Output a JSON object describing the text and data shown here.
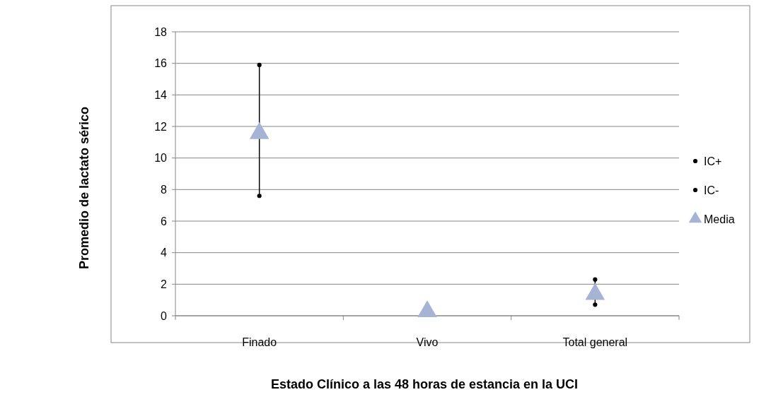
{
  "chart_data": {
    "type": "scatter",
    "xlabel": "Estado Clínico a las 48 horas de estancia en la UCI",
    "ylabel": "Promedio de lactato sérico",
    "categories": [
      "Finado",
      "Vivo",
      "Total general"
    ],
    "series": [
      {
        "name": "IC+",
        "color": "#000000",
        "marker": "circle",
        "values": [
          15.9,
          null,
          2.3
        ]
      },
      {
        "name": "IC-",
        "color": "#000000",
        "marker": "circle",
        "values": [
          7.6,
          null,
          0.7
        ]
      },
      {
        "name": "Media",
        "color": "#a5b4d4",
        "marker": "triangle",
        "values": [
          11.7,
          0.4,
          1.5
        ]
      }
    ],
    "ylim": [
      0,
      18
    ],
    "yticks": [
      0,
      2,
      4,
      6,
      8,
      10,
      12,
      14,
      16,
      18
    ],
    "grid": "y",
    "legend": "right"
  }
}
